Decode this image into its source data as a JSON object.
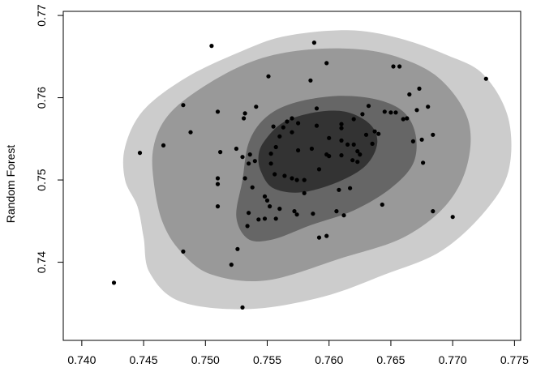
{
  "chart_data": {
    "type": "scatter",
    "title": "",
    "xlabel": "",
    "ylabel": "Random Forest",
    "xlim": [
      0.7385,
      0.7755
    ],
    "ylim": [
      0.7305,
      0.7705
    ],
    "xticks": [
      "0.740",
      "0.745",
      "0.750",
      "0.755",
      "0.760",
      "0.765",
      "0.770",
      "0.775"
    ],
    "yticks": [
      "0.74",
      "0.75",
      "0.76",
      "0.77"
    ],
    "grid": false,
    "legend": "none",
    "density_levels": [
      {
        "level": 1,
        "color": "#cccccc",
        "outline": [
          [
            0.7435,
            0.754
          ],
          [
            0.745,
            0.7585
          ],
          [
            0.7485,
            0.7625
          ],
          [
            0.753,
            0.7657
          ],
          [
            0.7565,
            0.7675
          ],
          [
            0.7615,
            0.7682
          ],
          [
            0.7655,
            0.7673
          ],
          [
            0.7695,
            0.7652
          ],
          [
            0.7725,
            0.7628
          ],
          [
            0.7745,
            0.7575
          ],
          [
            0.7745,
            0.751
          ],
          [
            0.7725,
            0.746
          ],
          [
            0.769,
            0.7413
          ],
          [
            0.7645,
            0.7385
          ],
          [
            0.7595,
            0.7358
          ],
          [
            0.7535,
            0.7343
          ],
          [
            0.748,
            0.7352
          ],
          [
            0.7455,
            0.7387
          ],
          [
            0.745,
            0.743
          ],
          [
            0.7445,
            0.7468
          ],
          [
            0.7435,
            0.75
          ]
        ]
      },
      {
        "level": 2,
        "color": "#999999",
        "outline": [
          [
            0.7458,
            0.754
          ],
          [
            0.7468,
            0.7575
          ],
          [
            0.749,
            0.7605
          ],
          [
            0.7528,
            0.7638
          ],
          [
            0.7565,
            0.7655
          ],
          [
            0.761,
            0.766
          ],
          [
            0.765,
            0.7652
          ],
          [
            0.7688,
            0.7625
          ],
          [
            0.7712,
            0.7575
          ],
          [
            0.7712,
            0.752
          ],
          [
            0.7695,
            0.747
          ],
          [
            0.766,
            0.743
          ],
          [
            0.761,
            0.7405
          ],
          [
            0.755,
            0.7378
          ],
          [
            0.7505,
            0.7385
          ],
          [
            0.748,
            0.7413
          ],
          [
            0.7465,
            0.745
          ],
          [
            0.7458,
            0.75
          ]
        ]
      },
      {
        "level": 3,
        "color": "#666666",
        "outline": [
          [
            0.7535,
            0.7545
          ],
          [
            0.7548,
            0.7575
          ],
          [
            0.757,
            0.7593
          ],
          [
            0.7605,
            0.7602
          ],
          [
            0.7638,
            0.7598
          ],
          [
            0.766,
            0.7583
          ],
          [
            0.767,
            0.7555
          ],
          [
            0.7668,
            0.752
          ],
          [
            0.765,
            0.749
          ],
          [
            0.762,
            0.7463
          ],
          [
            0.7585,
            0.7445
          ],
          [
            0.7555,
            0.7428
          ],
          [
            0.7535,
            0.7428
          ],
          [
            0.7525,
            0.7455
          ],
          [
            0.753,
            0.75
          ]
        ]
      },
      {
        "level": 4,
        "color": "#333333",
        "outline": [
          [
            0.7548,
            0.7548
          ],
          [
            0.7563,
            0.757
          ],
          [
            0.7588,
            0.7582
          ],
          [
            0.7613,
            0.7583
          ],
          [
            0.7633,
            0.7568
          ],
          [
            0.7639,
            0.7545
          ],
          [
            0.763,
            0.7518
          ],
          [
            0.7608,
            0.7498
          ],
          [
            0.7578,
            0.7485
          ],
          [
            0.7555,
            0.749
          ],
          [
            0.7545,
            0.751
          ],
          [
            0.7543,
            0.753
          ]
        ]
      }
    ],
    "x": [
      0.7505,
      0.7588,
      0.7598,
      0.7727,
      0.7652,
      0.7657,
      0.7551,
      0.7585,
      0.7482,
      0.751,
      0.7532,
      0.7541,
      0.7531,
      0.7555,
      0.757,
      0.759,
      0.7575,
      0.761,
      0.762,
      0.7627,
      0.765,
      0.7663,
      0.7671,
      0.7673,
      0.768,
      0.7637,
      0.763,
      0.761,
      0.76,
      0.756,
      0.7557,
      0.7553,
      0.7553,
      0.754,
      0.7536,
      0.7525,
      0.753,
      0.7535,
      0.7556,
      0.7564,
      0.757,
      0.7574,
      0.758,
      0.7592,
      0.76,
      0.761,
      0.7619,
      0.7615,
      0.7625,
      0.7635,
      0.764,
      0.7645,
      0.7654,
      0.766,
      0.7665,
      0.7668,
      0.7676,
      0.7684,
      0.7447,
      0.7466,
      0.7488,
      0.7512,
      0.751,
      0.751,
      0.7532,
      0.7538,
      0.7548,
      0.755,
      0.7552,
      0.756,
      0.7572,
      0.7574,
      0.758,
      0.7587,
      0.7592,
      0.7598,
      0.7612,
      0.7606,
      0.7608,
      0.7617,
      0.7623,
      0.7643,
      0.7535,
      0.7543,
      0.7548,
      0.7557,
      0.7534,
      0.751,
      0.7566,
      0.757,
      0.759,
      0.762,
      0.7623,
      0.7632,
      0.7675,
      0.7684,
      0.77,
      0.7426,
      0.7482,
      0.7521,
      0.7526,
      0.753,
      0.7598,
      0.761,
      0.7586,
      0.7575,
      0.7563
    ],
    "y": [
      0.7663,
      0.7667,
      0.7642,
      0.7623,
      0.7638,
      0.7638,
      0.7626,
      0.7621,
      0.7591,
      0.7583,
      0.7581,
      0.7589,
      0.7575,
      0.7565,
      0.7558,
      0.7566,
      0.7569,
      0.7563,
      0.7574,
      0.758,
      0.7582,
      0.7575,
      0.7585,
      0.7611,
      0.7589,
      0.7559,
      0.7555,
      0.7548,
      0.7551,
      0.7553,
      0.754,
      0.7532,
      0.752,
      0.7523,
      0.7531,
      0.7538,
      0.7528,
      0.752,
      0.7507,
      0.7505,
      0.7502,
      0.75,
      0.75,
      0.7513,
      0.7529,
      0.753,
      0.7524,
      0.7543,
      0.7531,
      0.7544,
      0.7556,
      0.7583,
      0.7582,
      0.7574,
      0.7604,
      0.7547,
      0.7521,
      0.7555,
      0.7533,
      0.7542,
      0.7558,
      0.7534,
      0.7502,
      0.7495,
      0.7502,
      0.7491,
      0.748,
      0.7475,
      0.7468,
      0.7465,
      0.7462,
      0.7458,
      0.7484,
      0.7459,
      0.743,
      0.7432,
      0.7457,
      0.7462,
      0.7488,
      0.749,
      0.7522,
      0.747,
      0.746,
      0.7452,
      0.7453,
      0.7453,
      0.7444,
      0.7468,
      0.7571,
      0.7575,
      0.7587,
      0.7543,
      0.7535,
      0.759,
      0.7549,
      0.7462,
      0.7455,
      0.7375,
      0.7413,
      0.7397,
      0.7416,
      0.7345,
      0.7531,
      0.7568,
      0.7538,
      0.7536,
      0.7564
    ]
  }
}
